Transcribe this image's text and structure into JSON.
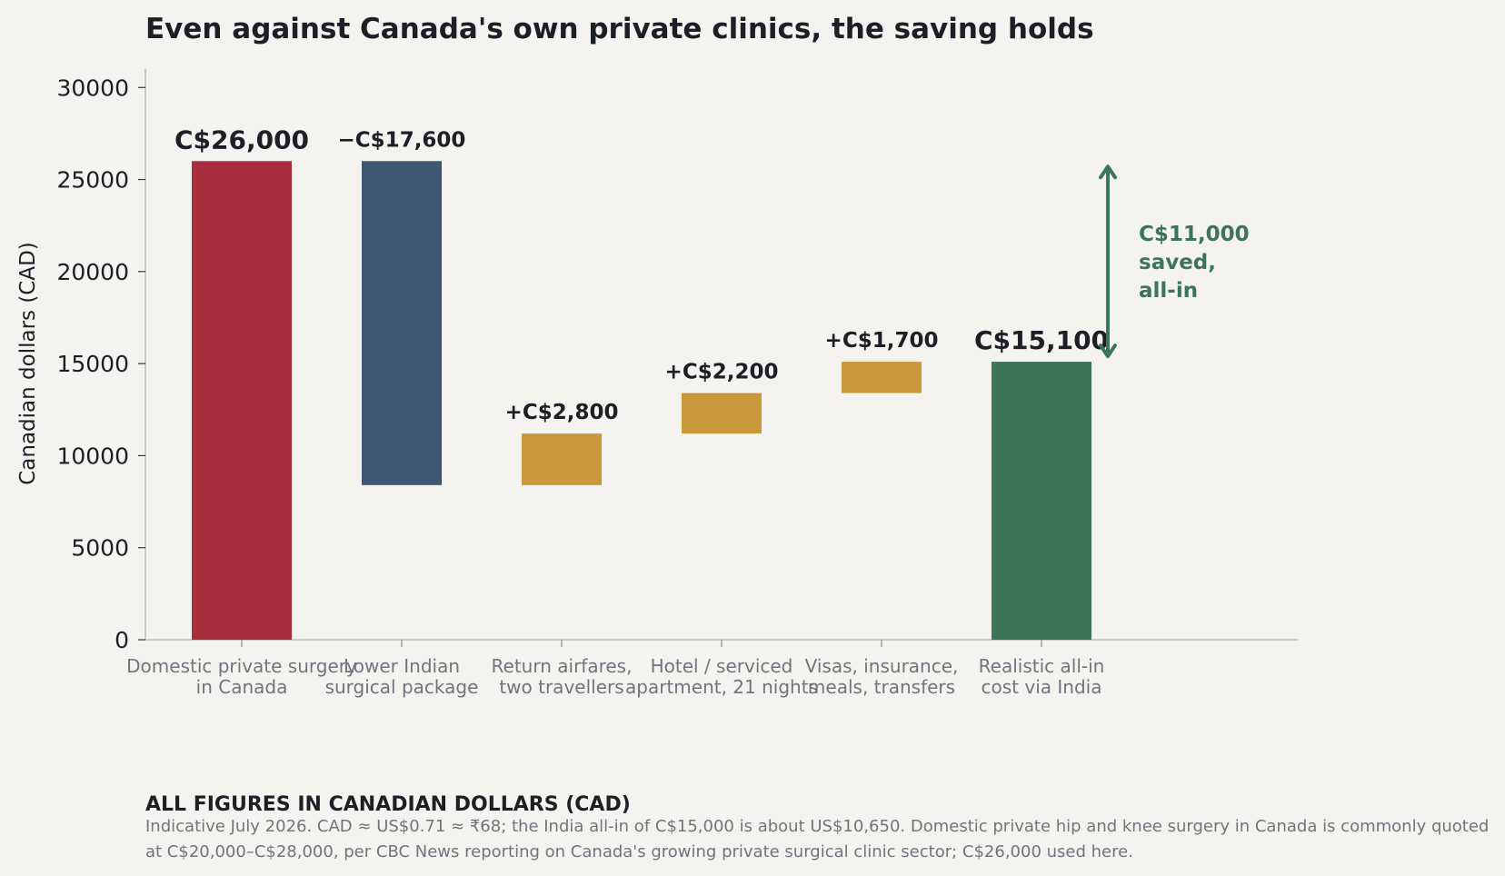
{
  "chart_data": {
    "type": "bar",
    "subtype": "waterfall",
    "title": "Even against Canada's own private clinics, the saving holds",
    "xlabel": "",
    "ylabel": "Canadian dollars (CAD)",
    "ylim": [
      0,
      31000
    ],
    "yticks": [
      0,
      5000,
      10000,
      15000,
      20000,
      25000,
      30000
    ],
    "grid": false,
    "steps": [
      {
        "label": [
          "Domestic private surgery",
          "in Canada"
        ],
        "kind": "total",
        "start": 0,
        "end": 26000,
        "value_label": "C$26,000",
        "color": "#a82e3e"
      },
      {
        "label": [
          "Lower Indian",
          "surgical package"
        ],
        "kind": "decrease",
        "start": 8400,
        "end": 26000,
        "value_label": "−C$17,600",
        "color": "#3d5672"
      },
      {
        "label": [
          "Return airfares,",
          "two travellers"
        ],
        "kind": "increase",
        "start": 8400,
        "end": 11200,
        "value_label": "+C$2,800",
        "color": "#c9983a"
      },
      {
        "label": [
          "Hotel / serviced",
          "apartment, 21 nights"
        ],
        "kind": "increase",
        "start": 11200,
        "end": 13400,
        "value_label": "+C$2,200",
        "color": "#c9983a"
      },
      {
        "label": [
          "Visas, insurance,",
          "meals, transfers"
        ],
        "kind": "increase",
        "start": 13400,
        "end": 15100,
        "value_label": "+C$1,700",
        "color": "#c9983a"
      },
      {
        "label": [
          "Realistic all-in",
          "cost via India"
        ],
        "kind": "total",
        "start": 0,
        "end": 15100,
        "value_label": "C$15,100",
        "color": "#3e7457"
      }
    ],
    "annotation": {
      "text": [
        "C$11,000",
        "saved,",
        "all-in"
      ],
      "from": 26000,
      "to": 15100,
      "color": "#3e7457"
    }
  },
  "footnote": {
    "heading": "ALL FIGURES IN CANADIAN DOLLARS (CAD)",
    "text": "Indicative July 2026. CAD ≈ US$0.71 ≈ ₹68; the India all-in of C$15,000 is about US$10,650. Domestic private hip and knee surgery in Canada is commonly quoted at C$20,000–C$28,000, per CBC News reporting on Canada's growing private surgical clinic sector; C$26,000 used here."
  }
}
